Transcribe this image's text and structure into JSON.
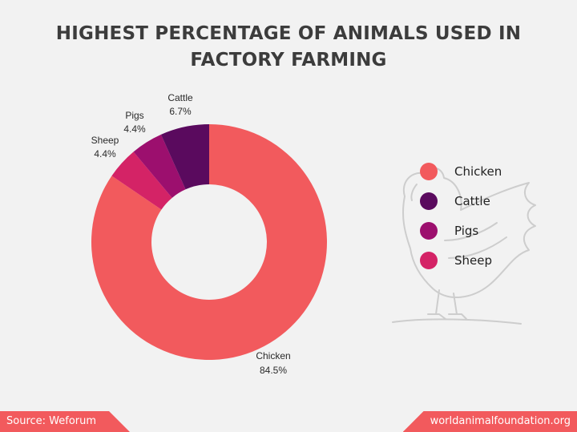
{
  "chart_data": {
    "type": "pie",
    "title": "HIGHEST PERCENTAGE OF ANIMALS USED IN FACTORY FARMING",
    "donut": true,
    "slices": [
      {
        "name": "Chicken",
        "value": 84.5,
        "label": "84.5%",
        "color": "#f25a5d"
      },
      {
        "name": "Cattle",
        "value": 6.7,
        "label": "6.7%",
        "color": "#5a0a5e"
      },
      {
        "name": "Pigs",
        "value": 4.4,
        "label": "4.4%",
        "color": "#9c0f6e"
      },
      {
        "name": "Sheep",
        "value": 4.4,
        "label": "4.4%",
        "color": "#d42366"
      }
    ],
    "legend": {
      "placement": "right",
      "entries": [
        "Chicken",
        "Cattle",
        "Pigs",
        "Sheep"
      ]
    }
  },
  "decoration": {
    "background_icon": "chicken-sketch-icon"
  },
  "footer": {
    "source": "Source: Weforum",
    "site": "worldanimalfoundation.org"
  }
}
